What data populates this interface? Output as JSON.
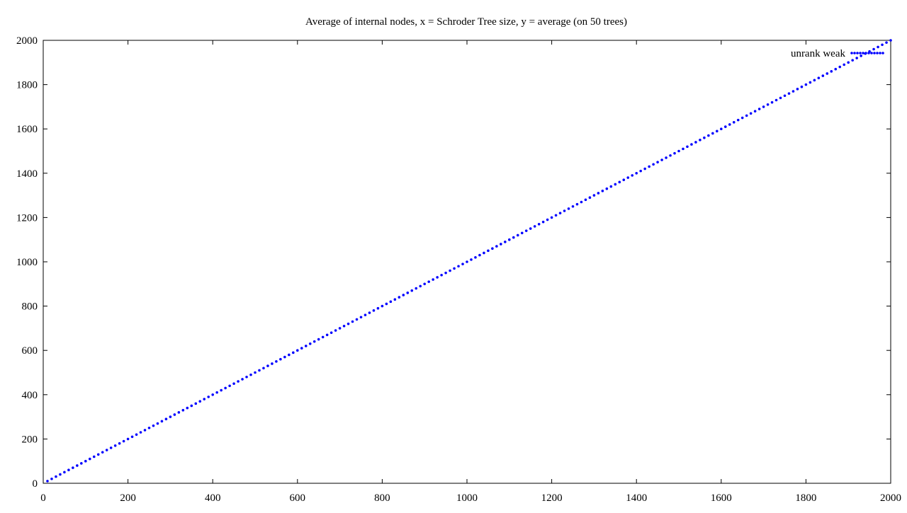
{
  "chart_data": {
    "type": "scatter",
    "title": "Average of internal nodes, x = Schroder Tree size, y = average (on 50 trees)",
    "xlabel": "",
    "ylabel": "",
    "xlim": [
      0,
      2000
    ],
    "ylim": [
      0,
      2000
    ],
    "x_ticks": [
      0,
      200,
      400,
      600,
      800,
      1000,
      1200,
      1400,
      1600,
      1800,
      2000
    ],
    "y_ticks": [
      0,
      200,
      400,
      600,
      800,
      1000,
      1200,
      1400,
      1600,
      1800,
      2000
    ],
    "grid": false,
    "legend_position": "top-right",
    "series": [
      {
        "name": "unrank weak",
        "color": "#0000ff",
        "marker": "dot",
        "x_start": 10,
        "x_end": 2000,
        "x_step": 10,
        "slope": 1.0
      }
    ]
  }
}
